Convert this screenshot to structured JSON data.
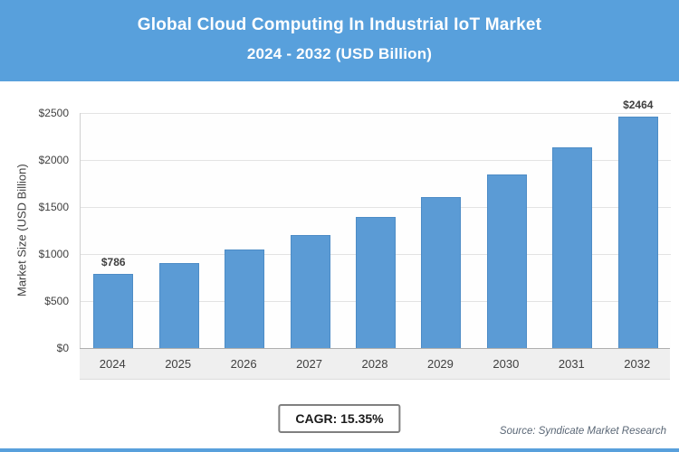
{
  "header": {
    "title_line1": "Global Cloud Computing In Industrial IoT Market",
    "title_line2": "2024 - 2032 (USD Billion)",
    "bg_color": "#58A0DC",
    "text_color": "#FFFFFF"
  },
  "chart_data": {
    "type": "bar",
    "title": "Global Cloud Computing In Industrial IoT Market 2024 - 2032 (USD Billion)",
    "categories": [
      "2024",
      "2025",
      "2026",
      "2027",
      "2028",
      "2029",
      "2030",
      "2031",
      "2032"
    ],
    "values": [
      786,
      907,
      1046,
      1206,
      1391,
      1605,
      1851,
      2136,
      2464
    ],
    "bar_labels": [
      "$786",
      "",
      "",
      "",
      "",
      "",
      "",
      "",
      "$2464"
    ],
    "xlabel": "",
    "ylabel": "Market Size (USD Billion)",
    "ylim": [
      0,
      2500
    ],
    "yticks": [
      0,
      500,
      1000,
      1500,
      2000,
      2500
    ],
    "ytick_labels": [
      "$0",
      "$500",
      "$1000",
      "$1500",
      "$2000",
      "$2500"
    ],
    "grid": true,
    "legend": false,
    "bar_color": "#5B9BD5"
  },
  "footer": {
    "cagr_label": "CAGR: 15.35%",
    "source": "Source: Syndicate Market Research"
  }
}
